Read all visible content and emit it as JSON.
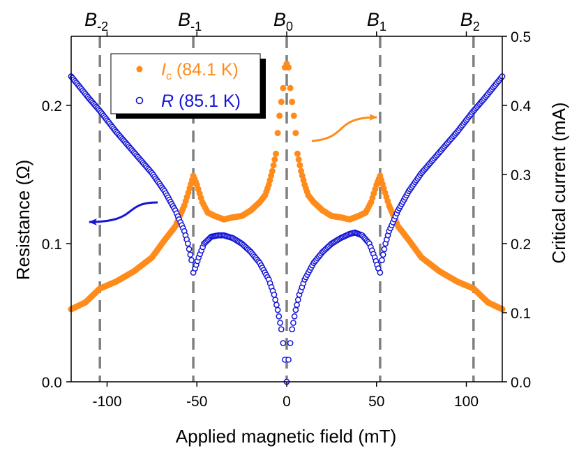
{
  "chart_data": {
    "type": "scatter",
    "x_label": "Applied magnetic field (mT)",
    "y_left_label": "Resistance (Ω)",
    "y_right_label": "Critical current (mA)",
    "x_range": [
      -120,
      120
    ],
    "y_left_range": [
      0,
      0.25
    ],
    "y_right_range": [
      0,
      0.5
    ],
    "x_ticks": [
      -100,
      -50,
      0,
      50,
      100
    ],
    "x_tick_labels": [
      "-100",
      "-50",
      "0",
      "50",
      "100"
    ],
    "y_left_ticks": [
      0.0,
      0.1,
      0.2
    ],
    "y_left_tick_labels": [
      "0.0",
      "0.1",
      "0.2"
    ],
    "y_right_ticks": [
      0.0,
      0.1,
      0.2,
      0.3,
      0.4,
      0.5
    ],
    "y_right_tick_labels": [
      "0.0",
      "0.1",
      "0.2",
      "0.3",
      "0.4",
      "0.5"
    ],
    "vertical_lines": [
      {
        "x": -104,
        "label": "B",
        "sub": "-2"
      },
      {
        "x": -52,
        "label": "B",
        "sub": "-1"
      },
      {
        "x": 0,
        "label": "B",
        "sub": "0"
      },
      {
        "x": 52,
        "label": "B",
        "sub": "1"
      },
      {
        "x": 104,
        "label": "B",
        "sub": "2"
      }
    ],
    "legend_position": "top-left",
    "series": [
      {
        "name_main": "I",
        "name_sub": "c",
        "name_rest": " (84.1 K)",
        "axis": "right",
        "marker": "filled-circle",
        "color": "#FF8C1A",
        "x": [
          -120,
          -112,
          -104,
          -95,
          -85,
          -75,
          -68,
          -62,
          -57,
          -54,
          -52,
          -50,
          -47,
          -44,
          -40,
          -35,
          -30,
          -25,
          -20,
          -15,
          -12,
          -10,
          -8,
          -6,
          -5,
          -4,
          -3,
          -2,
          -1,
          0,
          1,
          2,
          3,
          4,
          5,
          6,
          8,
          10,
          12,
          15,
          20,
          25,
          30,
          35,
          40,
          44,
          47,
          50,
          52,
          54,
          57,
          62,
          68,
          75,
          85,
          95,
          104,
          112,
          120
        ],
        "y": [
          0.105,
          0.115,
          0.135,
          0.145,
          0.16,
          0.18,
          0.205,
          0.225,
          0.255,
          0.28,
          0.298,
          0.285,
          0.26,
          0.245,
          0.24,
          0.235,
          0.238,
          0.24,
          0.248,
          0.26,
          0.27,
          0.285,
          0.305,
          0.33,
          0.36,
          0.385,
          0.405,
          0.425,
          0.455,
          0.46,
          0.455,
          0.425,
          0.405,
          0.385,
          0.36,
          0.33,
          0.305,
          0.285,
          0.27,
          0.26,
          0.248,
          0.24,
          0.238,
          0.235,
          0.24,
          0.245,
          0.26,
          0.285,
          0.298,
          0.28,
          0.255,
          0.225,
          0.205,
          0.18,
          0.16,
          0.145,
          0.135,
          0.115,
          0.105
        ]
      },
      {
        "name_main": "R",
        "name_sub": "",
        "name_rest": " (85.1 K)",
        "axis": "left",
        "marker": "open-circle",
        "color": "#1515D6",
        "x": [
          -120,
          -115,
          -110,
          -104,
          -95,
          -85,
          -75,
          -68,
          -62,
          -57,
          -55,
          -53,
          -52,
          -51,
          -49,
          -46,
          -42,
          -38,
          -35,
          -30,
          -25,
          -20,
          -15,
          -10,
          -7,
          -5,
          -3,
          -2,
          -1,
          0,
          1,
          2,
          3,
          5,
          7,
          10,
          15,
          20,
          25,
          30,
          35,
          38,
          42,
          46,
          49,
          51,
          52,
          53,
          55,
          57,
          62,
          68,
          75,
          85,
          95,
          104,
          110,
          115,
          120
        ],
        "y": [
          0.221,
          0.213,
          0.205,
          0.196,
          0.181,
          0.166,
          0.151,
          0.138,
          0.124,
          0.109,
          0.1,
          0.088,
          0.079,
          0.082,
          0.09,
          0.1,
          0.105,
          0.106,
          0.106,
          0.104,
          0.1,
          0.094,
          0.086,
          0.074,
          0.063,
          0.052,
          0.038,
          0.028,
          0.016,
          0.0,
          0.016,
          0.028,
          0.038,
          0.052,
          0.063,
          0.074,
          0.086,
          0.094,
          0.1,
          0.104,
          0.107,
          0.108,
          0.106,
          0.1,
          0.09,
          0.082,
          0.079,
          0.088,
          0.1,
          0.109,
          0.124,
          0.138,
          0.151,
          0.166,
          0.181,
          0.196,
          0.205,
          0.213,
          0.221
        ]
      }
    ],
    "colors": {
      "orange": "#FF8C1A",
      "blue": "#1515D6",
      "dashed_line": "#808080"
    }
  }
}
